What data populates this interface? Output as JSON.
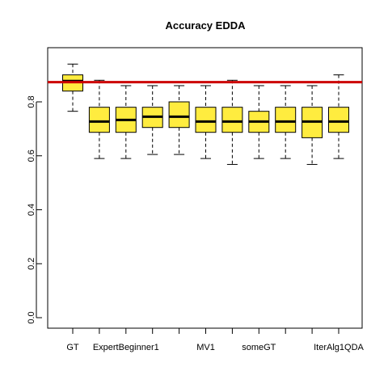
{
  "chart_data": {
    "type": "boxplot",
    "title": "Accuracy EDDA",
    "xlabel": "",
    "ylabel": "",
    "ylim": [
      0.0,
      0.95
    ],
    "yticks": [
      0.0,
      0.2,
      0.4,
      0.6,
      0.8
    ],
    "ytick_labels": [
      "0.0",
      "0.2",
      "0.4",
      "0.6",
      "0.8"
    ],
    "categories_shown": [
      "GT",
      "ExpertBeginner1",
      "MV1",
      "someGT",
      "IterAlg1QDA"
    ],
    "reference_line": {
      "y": 0.873,
      "color": "#cc0000"
    },
    "box_fill": "#ffec3f",
    "grid": false,
    "boxes": [
      {
        "min": 0.765,
        "q1": 0.84,
        "median": 0.877,
        "q3": 0.9,
        "max": 0.94
      },
      {
        "min": 0.59,
        "q1": 0.687,
        "median": 0.727,
        "q3": 0.78,
        "max": 0.88
      },
      {
        "min": 0.59,
        "q1": 0.687,
        "median": 0.733,
        "q3": 0.78,
        "max": 0.86
      },
      {
        "min": 0.605,
        "q1": 0.705,
        "median": 0.745,
        "q3": 0.78,
        "max": 0.86
      },
      {
        "min": 0.605,
        "q1": 0.705,
        "median": 0.745,
        "q3": 0.8,
        "max": 0.86
      },
      {
        "min": 0.59,
        "q1": 0.687,
        "median": 0.727,
        "q3": 0.78,
        "max": 0.86
      },
      {
        "min": 0.568,
        "q1": 0.687,
        "median": 0.727,
        "q3": 0.78,
        "max": 0.88
      },
      {
        "min": 0.59,
        "q1": 0.687,
        "median": 0.727,
        "q3": 0.765,
        "max": 0.86
      },
      {
        "min": 0.59,
        "q1": 0.687,
        "median": 0.727,
        "q3": 0.78,
        "max": 0.86
      },
      {
        "min": 0.568,
        "q1": 0.667,
        "median": 0.727,
        "q3": 0.78,
        "max": 0.86
      },
      {
        "min": 0.59,
        "q1": 0.687,
        "median": 0.727,
        "q3": 0.78,
        "max": 0.9
      }
    ]
  }
}
